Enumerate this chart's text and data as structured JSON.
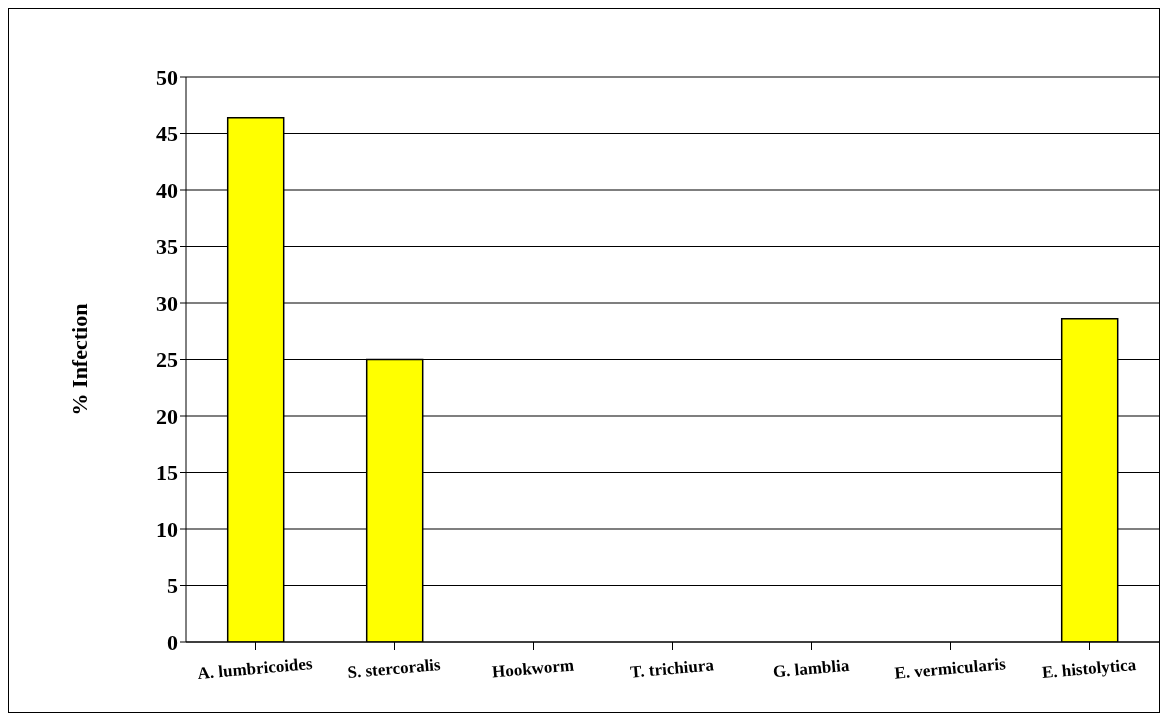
{
  "chart_data": {
    "type": "bar",
    "ylabel": "% Infection",
    "categories": [
      "A. lumbricoides",
      "S. stercoralis",
      "Hookworm",
      "T. trichiura",
      "G. lamblia",
      "E. vermicularis",
      "E. histolytica"
    ],
    "values": [
      46.4,
      25,
      0,
      0,
      0,
      0,
      28.6
    ],
    "color": "#ffff00",
    "ylim": [
      0,
      50
    ],
    "yticks": [
      0,
      5,
      10,
      15,
      20,
      25,
      30,
      35,
      40,
      45,
      50
    ],
    "grid": "y"
  }
}
